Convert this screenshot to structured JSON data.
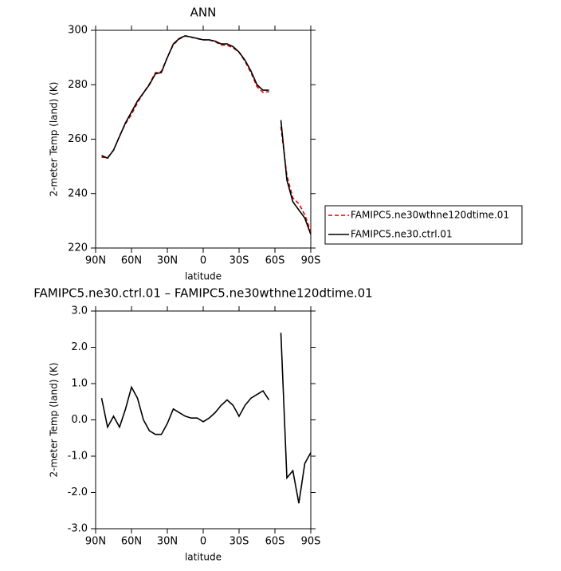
{
  "chart_data": [
    {
      "type": "line",
      "title": "ANN",
      "x_label": "latitude",
      "y_label": "2-meter Temp (land) (K)",
      "x": [
        85,
        80,
        75,
        70,
        65,
        60,
        55,
        50,
        45,
        40,
        35,
        30,
        25,
        20,
        15,
        10,
        5,
        0,
        -5,
        -10,
        -15,
        -20,
        -25,
        -30,
        -35,
        -40,
        -45,
        -50,
        -55,
        -60,
        -65,
        -70,
        -75,
        -80,
        -85,
        -90
      ],
      "xlim": [
        90,
        -90
      ],
      "xticks": [
        {
          "value": 90,
          "label": "90N"
        },
        {
          "value": 60,
          "label": "60N"
        },
        {
          "value": 30,
          "label": "30N"
        },
        0,
        {
          "value": -30,
          "label": "30S"
        },
        {
          "value": -60,
          "label": "60S"
        },
        {
          "value": -90,
          "label": "90S"
        }
      ],
      "ylim": [
        220,
        300
      ],
      "yticks": [
        220,
        240,
        260,
        280,
        300
      ],
      "legend": "right",
      "series": [
        {
          "name": "FAMIPC5.ne30wthne120dtime.01",
          "color": "#e00000",
          "dash": true,
          "values": [
            253.4,
            253.2,
            255.9,
            261.2,
            265.7,
            269.1,
            273.4,
            277,
            280.3,
            284.4,
            284.9,
            290.1,
            294.7,
            296.8,
            297.9,
            297.45,
            296.95,
            296.55,
            296.45,
            295.8,
            294.6,
            294.45,
            293.6,
            291.9,
            288.6,
            284.4,
            279.3,
            277.2,
            277.45,
            null,
            264.6,
            246.6,
            238.4,
            236.3,
            232.2,
            225.9
          ]
        },
        {
          "name": "FAMIPC5.ne30.ctrl.01",
          "color": "#000000",
          "dash": false,
          "values": [
            254,
            253,
            256,
            261,
            266,
            270,
            274,
            277,
            280,
            284,
            284.5,
            290,
            295,
            297,
            298,
            297.5,
            297,
            296.5,
            296.5,
            296,
            295,
            295,
            294,
            292,
            289,
            285,
            280,
            278,
            278,
            null,
            267,
            245,
            237,
            234,
            231,
            225
          ]
        }
      ]
    },
    {
      "type": "line",
      "title": "FAMIPC5.ne30.ctrl.01 – FAMIPC5.ne30wthne120dtime.01",
      "x_label": "latitude",
      "y_label": "2-meter Temp (land) (K)",
      "x": [
        85,
        80,
        75,
        70,
        65,
        60,
        55,
        50,
        45,
        40,
        35,
        30,
        25,
        20,
        15,
        10,
        5,
        0,
        -5,
        -10,
        -15,
        -20,
        -25,
        -30,
        -35,
        -40,
        -45,
        -50,
        -55,
        -60,
        -65,
        -70,
        -75,
        -80,
        -85,
        -90
      ],
      "xlim": [
        90,
        -90
      ],
      "xticks": [
        {
          "value": 90,
          "label": "90N"
        },
        {
          "value": 60,
          "label": "60N"
        },
        {
          "value": 30,
          "label": "30N"
        },
        0,
        {
          "value": -30,
          "label": "30S"
        },
        {
          "value": -60,
          "label": "60S"
        },
        {
          "value": -90,
          "label": "90S"
        }
      ],
      "ylim": [
        -3,
        3
      ],
      "yticks": [
        {
          "value": -3,
          "label": "-3.0"
        },
        {
          "value": -2,
          "label": "-2.0"
        },
        {
          "value": -1,
          "label": "-1.0"
        },
        {
          "value": 0,
          "label": "0.0"
        },
        {
          "value": 1,
          "label": "1.0"
        },
        {
          "value": 2,
          "label": "2.0"
        },
        {
          "value": 3,
          "label": "3.0"
        }
      ],
      "color": "#000000",
      "values": [
        0.6,
        -0.2,
        0.1,
        -0.2,
        0.3,
        0.9,
        0.6,
        0,
        -0.3,
        -0.4,
        -0.4,
        -0.1,
        0.3,
        0.2,
        0.1,
        0.05,
        0.05,
        -0.05,
        0.05,
        0.2,
        0.4,
        0.55,
        0.4,
        0.1,
        0.4,
        0.6,
        0.7,
        0.8,
        0.55,
        null,
        2.4,
        -1.6,
        -1.4,
        -2.3,
        -1.2,
        -0.9
      ]
    }
  ]
}
